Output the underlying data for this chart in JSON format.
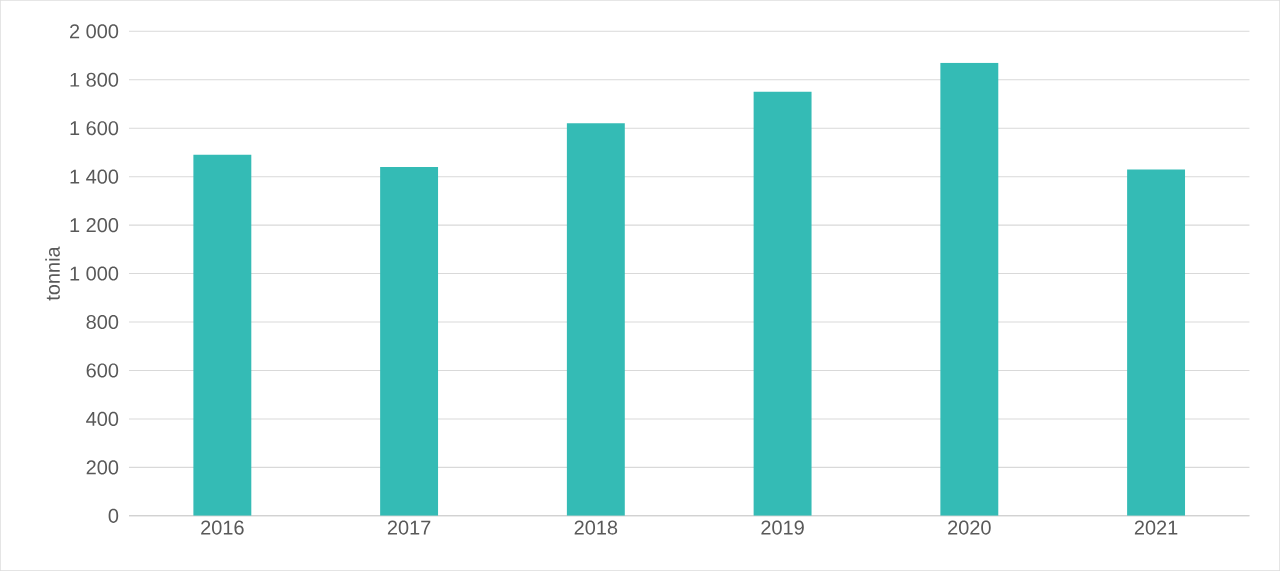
{
  "chart_data": {
    "type": "bar",
    "ylabel": "tonnia",
    "categories": [
      "2016",
      "2017",
      "2018",
      "2019",
      "2020",
      "2021"
    ],
    "values": [
      1490,
      1440,
      1620,
      1750,
      1870,
      1430
    ],
    "color": "#34bbb5",
    "ylim": [
      0,
      2000
    ],
    "yticks": [
      0,
      200,
      400,
      600,
      800,
      {
        "value": 1000,
        "label": "1 000"
      },
      {
        "value": 1200,
        "label": "1 200"
      },
      {
        "value": 1400,
        "label": "1 400"
      },
      {
        "value": 1600,
        "label": "1 600"
      },
      {
        "value": 1800,
        "label": "1 800"
      },
      {
        "value": 2000,
        "label": "2 000"
      }
    ],
    "grid": "y"
  }
}
